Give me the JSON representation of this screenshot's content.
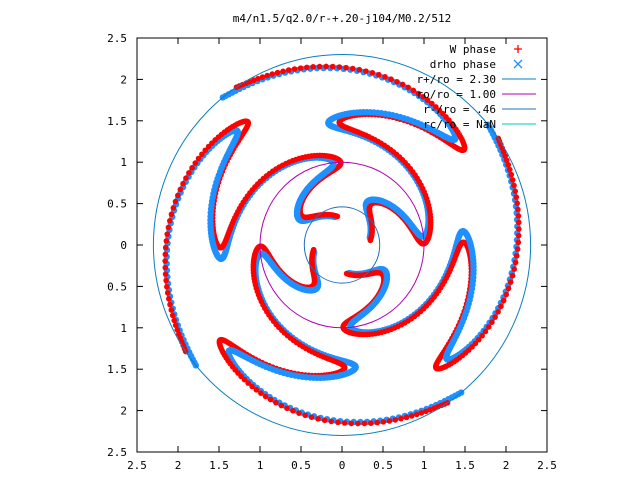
{
  "chart_data": {
    "type": "scatter",
    "title": "m4/n1.5/q2.0/r-+.20-j104/M0.2/512",
    "xlabel": "",
    "ylabel": "",
    "xlim": [
      -2.5,
      2.5
    ],
    "ylim": [
      -2.5,
      2.5
    ],
    "x_ticks": [
      -2.5,
      -2,
      -1.5,
      -1,
      -0.5,
      0,
      0.5,
      1,
      1.5,
      2,
      2.5
    ],
    "y_ticks": [
      -2.5,
      -2,
      -1.5,
      -1,
      -0.5,
      0,
      0.5,
      1,
      1.5,
      2,
      2.5
    ],
    "x_tick_labels": [
      "2.5",
      "2",
      "1.5",
      "1",
      "0.5",
      "0",
      "0.5",
      "1",
      "1.5",
      "2",
      "2.5"
    ],
    "y_tick_labels": [
      "2.5",
      "2",
      "1.5",
      "1",
      "0.5",
      "0",
      "0.5",
      "1",
      "1.5",
      "2",
      "2.5"
    ],
    "grid": false,
    "legend_position": "top-right",
    "arms": 4,
    "series": [
      {
        "name": "W phase",
        "marker": "+",
        "color": "#ff0000"
      },
      {
        "name": "drho phase",
        "marker": "x",
        "color": "#1e90ff"
      }
    ],
    "circles": [
      {
        "name": "r+/ro = 2.30",
        "radius": 2.3,
        "color": "#0a7fbf"
      },
      {
        "name": "ro/ro = 1.00",
        "radius": 1.0,
        "color": "#b000b0"
      },
      {
        "name": "r-/ro = .46",
        "radius": 0.46,
        "color": "#1f6fc0"
      },
      {
        "name": "rc/ro = NaN",
        "radius": null,
        "color": "#00c8c8"
      }
    ]
  }
}
